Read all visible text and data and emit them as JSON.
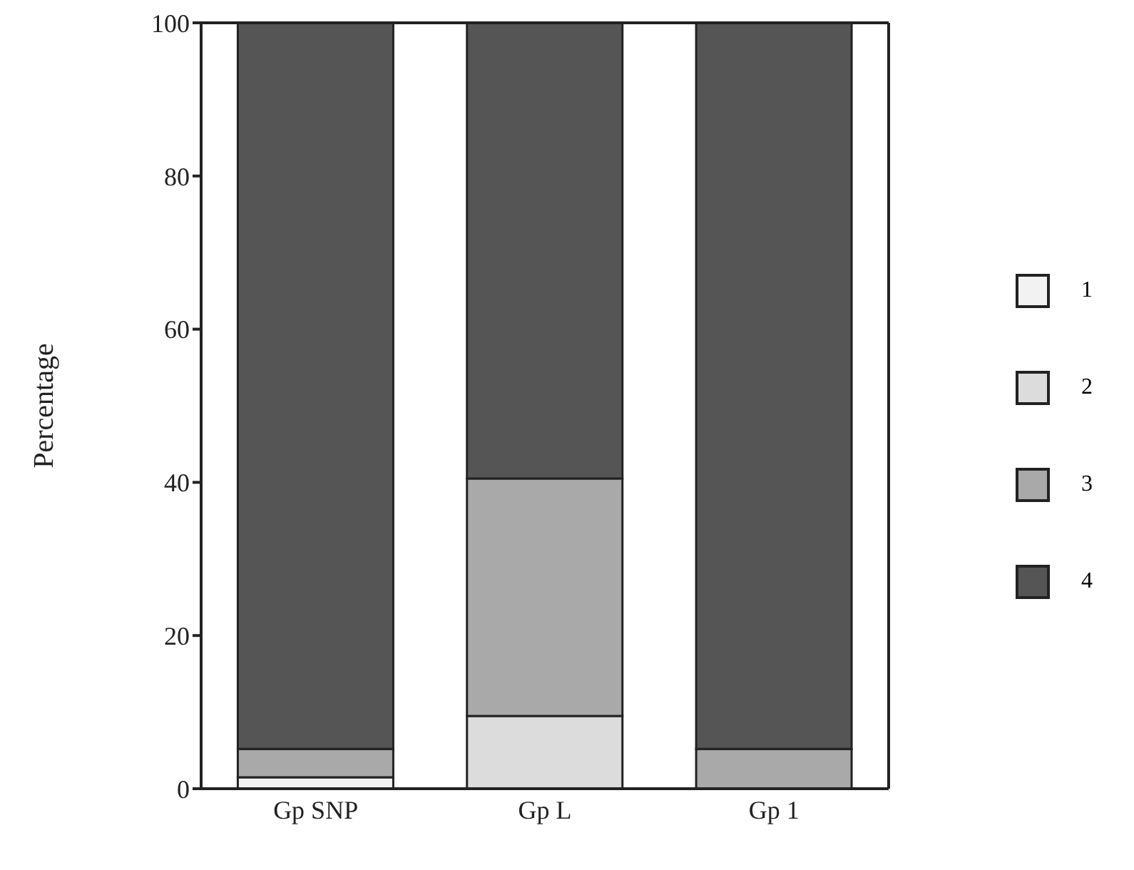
{
  "chart_data": {
    "type": "bar",
    "stacked": true,
    "ylabel": "Percentage",
    "categories": [
      "Gp SNP",
      "Gp L",
      "Gp 1"
    ],
    "series": [
      {
        "name": "1",
        "color": "#f2f2f2",
        "values": [
          1.5,
          0,
          0
        ]
      },
      {
        "name": "2",
        "color": "#dcdcdc",
        "values": [
          0,
          9.5,
          0
        ]
      },
      {
        "name": "3",
        "color": "#a9a9a9",
        "values": [
          3.7,
          31,
          5.2
        ]
      },
      {
        "name": "4",
        "color": "#555555",
        "values": [
          94.8,
          59.5,
          94.8
        ]
      }
    ],
    "ylim": [
      0,
      100
    ],
    "yticks": [
      0,
      20,
      40,
      60,
      80,
      100
    ],
    "legend": "right"
  }
}
